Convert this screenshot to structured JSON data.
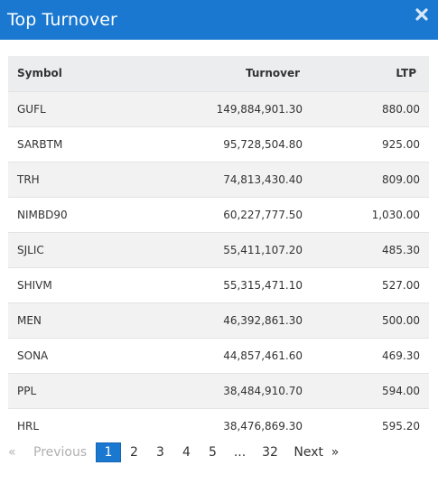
{
  "modal": {
    "title": "Top Turnover",
    "close_icon": "close-icon"
  },
  "table": {
    "headers": {
      "symbol": "Symbol",
      "turnover": "Turnover",
      "ltp": "LTP"
    },
    "rows": [
      {
        "symbol": "GUFL",
        "turnover": "149,884,901.30",
        "ltp": "880.00"
      },
      {
        "symbol": "SARBTM",
        "turnover": "95,728,504.80",
        "ltp": "925.00"
      },
      {
        "symbol": "TRH",
        "turnover": "74,813,430.40",
        "ltp": "809.00"
      },
      {
        "symbol": "NIMBD90",
        "turnover": "60,227,777.50",
        "ltp": "1,030.00"
      },
      {
        "symbol": "SJLIC",
        "turnover": "55,411,107.20",
        "ltp": "485.30"
      },
      {
        "symbol": "SHIVM",
        "turnover": "55,315,471.10",
        "ltp": "527.00"
      },
      {
        "symbol": "MEN",
        "turnover": "46,392,861.30",
        "ltp": "500.00"
      },
      {
        "symbol": "SONA",
        "turnover": "44,857,461.60",
        "ltp": "469.30"
      },
      {
        "symbol": "PPL",
        "turnover": "38,484,910.70",
        "ltp": "594.00"
      },
      {
        "symbol": "HRL",
        "turnover": "38,476,869.30",
        "ltp": "595.20"
      }
    ]
  },
  "pagination": {
    "prev_arrow": "«",
    "prev_label": "Previous",
    "pages": [
      "1",
      "2",
      "3",
      "4",
      "5"
    ],
    "active_page": "1",
    "ellipsis": "...",
    "last_page": "32",
    "next_label": "Next",
    "next_arrow": "»"
  },
  "colors": {
    "header_bg": "#1a78d0",
    "active_page_bg": "#1a78d0",
    "row_stripe": "#f2f2f2"
  }
}
